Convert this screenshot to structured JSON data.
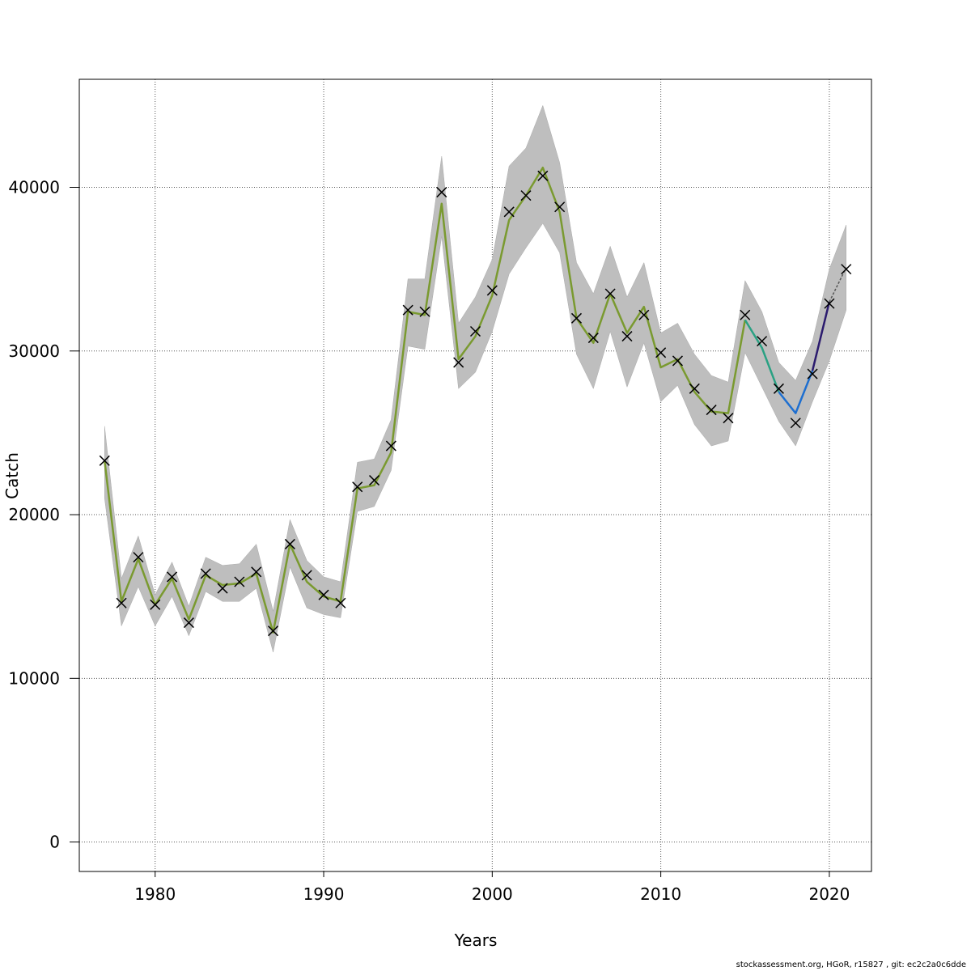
{
  "footer": "stockassessment.org, HGoR, r15827 , git: ec2c2a0c6dde",
  "chart_data": {
    "type": "line",
    "xlabel": "Years",
    "ylabel": "Catch",
    "xlim": [
      1975.5,
      2022.5
    ],
    "ylim": [
      -1800,
      46600
    ],
    "x_ticks": [
      1980,
      1990,
      2000,
      2010,
      2020
    ],
    "y_ticks": [
      0,
      10000,
      20000,
      30000,
      40000
    ],
    "grid": true,
    "band_color": "#bebebe",
    "years": [
      1977,
      1978,
      1979,
      1980,
      1981,
      1982,
      1983,
      1984,
      1985,
      1986,
      1987,
      1988,
      1989,
      1990,
      1991,
      1992,
      1993,
      1994,
      1995,
      1996,
      1997,
      1998,
      1999,
      2000,
      2001,
      2002,
      2003,
      2004,
      2005,
      2006,
      2007,
      2008,
      2009,
      2010,
      2011,
      2012,
      2013,
      2014,
      2015,
      2016,
      2017,
      2018,
      2019,
      2020,
      2021
    ],
    "estimate": [
      23300,
      14700,
      17300,
      14500,
      16100,
      13600,
      16300,
      15700,
      15800,
      16400,
      12800,
      18200,
      15900,
      15000,
      14700,
      21600,
      21800,
      23800,
      32400,
      32200,
      39000,
      29500,
      30900,
      33400,
      38000,
      39500,
      41200,
      38500,
      32000,
      30500,
      33500,
      31100,
      32700,
      29000,
      29500,
      27500,
      26300,
      26200,
      31900,
      30200,
      27500,
      26200,
      28800,
      33000,
      35100
    ],
    "lower": [
      21000,
      13200,
      15600,
      13200,
      15000,
      12600,
      15300,
      14700,
      14700,
      15500,
      11600,
      16800,
      14300,
      13900,
      13700,
      20200,
      20500,
      22700,
      30300,
      30100,
      37000,
      27700,
      28700,
      31200,
      34700,
      36300,
      37800,
      36000,
      29800,
      27700,
      31200,
      27800,
      30500,
      26900,
      27900,
      25500,
      24200,
      24500,
      29900,
      27800,
      25700,
      24200,
      26900,
      29400,
      32500
    ],
    "upper": [
      25400,
      16100,
      18700,
      15100,
      17100,
      14400,
      17400,
      16900,
      17000,
      18200,
      14100,
      19700,
      17200,
      16200,
      15900,
      23200,
      23400,
      25800,
      34400,
      34400,
      41900,
      31700,
      33300,
      35600,
      41300,
      42400,
      45000,
      41500,
      35400,
      33500,
      36400,
      33300,
      35400,
      31100,
      31700,
      29800,
      28500,
      28100,
      34300,
      32400,
      29300,
      28200,
      30600,
      35000,
      37700
    ],
    "observed": [
      23300,
      14600,
      17400,
      14500,
      16200,
      13400,
      16400,
      15500,
      15900,
      16500,
      12900,
      18200,
      16300,
      15100,
      14600,
      21700,
      22100,
      24200,
      32500,
      32400,
      39700,
      29300,
      31200,
      33700,
      38500,
      39500,
      40700,
      38800,
      32000,
      30800,
      33500,
      30900,
      32200,
      29900,
      29400,
      27700,
      26400,
      25900,
      32200,
      30600,
      27700,
      25600,
      28600,
      32900,
      35000
    ],
    "series": [
      {
        "name": "",
        "color": "#7a9a30",
        "years": [
          1977,
          1978,
          1979,
          1980,
          1981,
          1982,
          1983,
          1984,
          1985,
          1986,
          1987,
          1988,
          1989,
          1990,
          1991,
          1992,
          1993,
          1994,
          1995,
          1996,
          1997,
          1998,
          1999,
          2000,
          2001,
          2002,
          2003,
          2004,
          2005,
          2006,
          2007,
          2008,
          2009,
          2010,
          2011,
          2012,
          2013,
          2014,
          2015
        ],
        "values": [
          23300,
          14700,
          17300,
          14500,
          16100,
          13600,
          16300,
          15700,
          15800,
          16400,
          12800,
          18200,
          15900,
          15000,
          14700,
          21600,
          21800,
          23800,
          32400,
          32200,
          39000,
          29500,
          30900,
          33400,
          38000,
          39500,
          41200,
          38500,
          32000,
          30500,
          33500,
          31100,
          32700,
          29000,
          29500,
          27500,
          26300,
          26200,
          31900
        ]
      },
      {
        "name": "",
        "color": "#2aa183",
        "years": [
          2015,
          2016,
          2017
        ],
        "values": [
          31900,
          30200,
          27500
        ]
      },
      {
        "name": "",
        "color": "#1e6fd0",
        "years": [
          2017,
          2018,
          2019
        ],
        "values": [
          27500,
          26200,
          28800
        ]
      },
      {
        "name": "",
        "color": "#2b1b6e",
        "years": [
          2019,
          2020
        ],
        "values": [
          28800,
          33000
        ]
      },
      {
        "name": "",
        "color": "#555555",
        "dashed": true,
        "years": [
          2020,
          2021
        ],
        "values": [
          33000,
          35100
        ]
      }
    ]
  }
}
